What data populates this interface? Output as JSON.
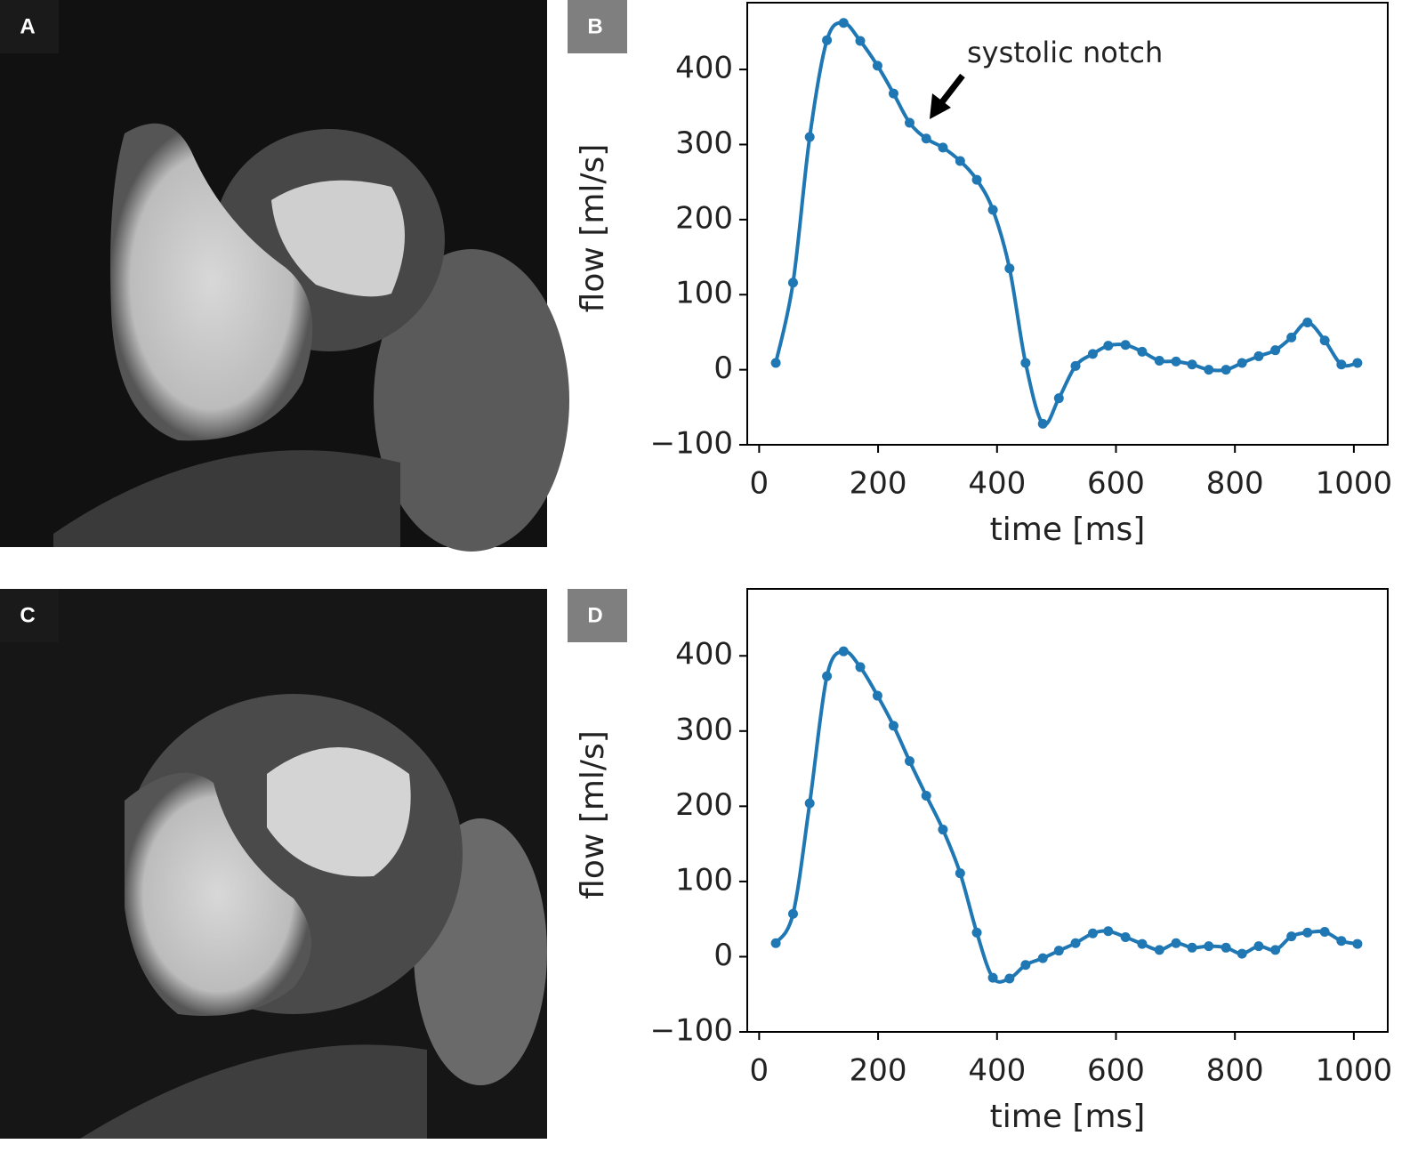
{
  "panel_labels": [
    "A",
    "B",
    "C",
    "D"
  ],
  "chart_data": [
    {
      "type": "line",
      "xlabel": "time [ms]",
      "ylabel": "flow [ml/s]",
      "annotation": "systolic notch",
      "xlim": [
        -20,
        1057
      ],
      "ylim": [
        -100,
        489
      ],
      "xticks": [
        0,
        200,
        400,
        600,
        800,
        1000
      ],
      "yticks": [
        {
          "value": -100,
          "label": "−100"
        },
        0,
        100,
        200,
        300,
        400
      ],
      "series": [
        {
          "color": "#1f77b4",
          "x": [
            28,
            57,
            85,
            114,
            142,
            170,
            199,
            226,
            253,
            281,
            309,
            338,
            366,
            393,
            421,
            448,
            477,
            504,
            532,
            561,
            587,
            616,
            644,
            673,
            701,
            728,
            756,
            785,
            812,
            840,
            868,
            895,
            922,
            951,
            979,
            1006
          ],
          "values": [
            9,
            116,
            310,
            439,
            462,
            438,
            405,
            368,
            329,
            308,
            296,
            278,
            253,
            213,
            135,
            9,
            -72,
            -38,
            5,
            21,
            32,
            33,
            24,
            12,
            11,
            7,
            0,
            0,
            9,
            18,
            26,
            43,
            63,
            39,
            7,
            9
          ]
        }
      ]
    },
    {
      "type": "line",
      "xlabel": "time [ms]",
      "ylabel": "flow [ml/s]",
      "xlim": [
        -20,
        1057
      ],
      "ylim": [
        -100,
        489
      ],
      "xticks": [
        0,
        200,
        400,
        600,
        800,
        1000
      ],
      "yticks": [
        {
          "value": -100,
          "label": "−100"
        },
        0,
        100,
        200,
        300,
        400
      ],
      "series": [
        {
          "color": "#1f77b4",
          "x": [
            28,
            57,
            85,
            114,
            142,
            170,
            199,
            226,
            253,
            281,
            309,
            338,
            366,
            393,
            421,
            448,
            477,
            504,
            532,
            561,
            587,
            616,
            644,
            673,
            701,
            728,
            756,
            785,
            812,
            840,
            868,
            895,
            922,
            951,
            979,
            1006
          ],
          "values": [
            18,
            57,
            204,
            373,
            406,
            385,
            347,
            307,
            260,
            214,
            169,
            111,
            32,
            -28,
            -29,
            -11,
            -2,
            8,
            18,
            31,
            34,
            26,
            17,
            9,
            18,
            12,
            14,
            12,
            4,
            14,
            9,
            27,
            32,
            33,
            21,
            17
          ]
        }
      ]
    }
  ]
}
